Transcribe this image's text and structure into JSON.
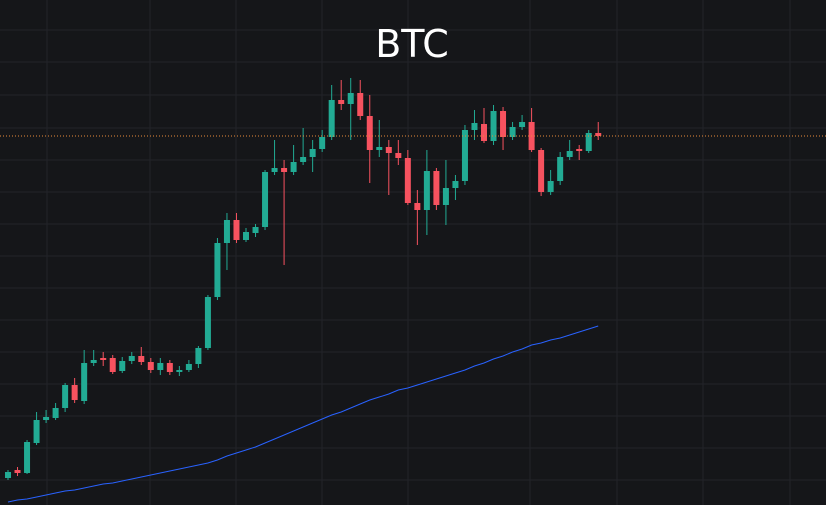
{
  "chart_data": {
    "type": "candlestick",
    "title": "BTC",
    "ylim": [
      0,
      505
    ],
    "up_color": "#22ab94",
    "down_color": "#f7525f",
    "ma_color": "#2962ff",
    "price_line_color": "#e8893a",
    "open": [
      27,
      35,
      32,
      62,
      85,
      87,
      97,
      120,
      104,
      142,
      147,
      147,
      134,
      144,
      149,
      143,
      135,
      142,
      133,
      135,
      141,
      157,
      208,
      262,
      285,
      265,
      272,
      278,
      333,
      337,
      333,
      343,
      348,
      356,
      368,
      405,
      401,
      412,
      389,
      355,
      358,
      352,
      347,
      302,
      295,
      334,
      300,
      317,
      324,
      375,
      381,
      364,
      394,
      368,
      378,
      383,
      355,
      313,
      324,
      348,
      356,
      354,
      372
    ],
    "high": [
      35,
      38,
      65,
      93,
      95,
      102,
      122,
      127,
      155,
      155,
      153,
      150,
      148,
      153,
      158,
      147,
      147,
      145,
      139,
      145,
      159,
      210,
      267,
      292,
      292,
      277,
      281,
      335,
      365,
      345,
      360,
      377,
      365,
      375,
      420,
      425,
      427,
      425,
      410,
      385,
      365,
      365,
      355,
      315,
      355,
      337,
      345,
      330,
      380,
      395,
      397,
      400,
      398,
      383,
      390,
      397,
      357,
      335,
      353,
      365,
      360,
      375,
      383
    ],
    "low": [
      25,
      29,
      31,
      60,
      82,
      85,
      93,
      102,
      101,
      139,
      139,
      131,
      132,
      141,
      140,
      132,
      130,
      130,
      129,
      133,
      137,
      155,
      205,
      235,
      262,
      263,
      268,
      275,
      330,
      240,
      330,
      340,
      333,
      353,
      365,
      395,
      365,
      385,
      322,
      348,
      310,
      340,
      300,
      260,
      270,
      295,
      280,
      305,
      320,
      365,
      362,
      360,
      355,
      365,
      375,
      353,
      309,
      310,
      320,
      345,
      345,
      352,
      365
    ],
    "close": [
      33,
      32,
      63,
      85,
      88,
      97,
      120,
      105,
      142,
      145,
      145,
      133,
      144,
      149,
      143,
      135,
      142,
      133,
      135,
      141,
      157,
      208,
      262,
      285,
      265,
      273,
      278,
      333,
      337,
      333,
      343,
      348,
      356,
      368,
      405,
      401,
      412,
      389,
      355,
      358,
      352,
      347,
      302,
      295,
      334,
      300,
      317,
      324,
      375,
      382,
      364,
      394,
      368,
      378,
      383,
      355,
      313,
      324,
      348,
      354,
      354,
      372,
      369
    ],
    "ma": [
      3,
      5,
      6,
      8,
      10,
      12,
      14,
      15,
      17,
      19,
      21,
      22,
      24,
      26,
      28,
      30,
      32,
      34,
      36,
      38,
      40,
      42,
      45,
      49,
      52,
      55,
      58,
      62,
      66,
      70,
      74,
      78,
      82,
      86,
      90,
      93,
      97,
      101,
      105,
      108,
      111,
      115,
      117,
      120,
      123,
      126,
      129,
      132,
      135,
      139,
      142,
      146,
      149,
      153,
      156,
      160,
      162,
      165,
      167,
      170,
      173,
      176,
      179
    ]
  }
}
